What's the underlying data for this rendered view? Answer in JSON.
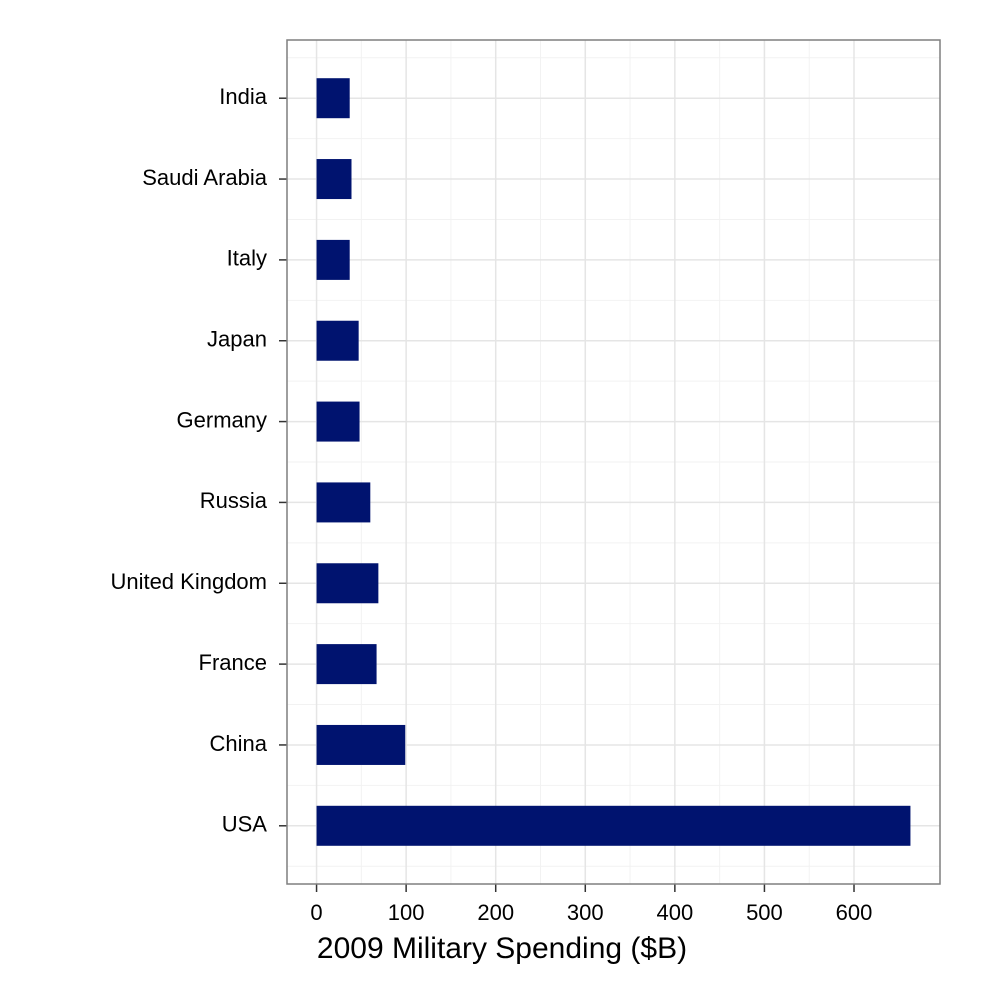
{
  "chart_data": {
    "type": "hbar",
    "xlabel": "2009 Military Spending ($B)",
    "categories": [
      "India",
      "Saudi Arabia",
      "Italy",
      "Japan",
      "Germany",
      "Russia",
      "United Kingdom",
      "France",
      "China",
      "USA"
    ],
    "values": [
      37,
      39,
      37,
      47,
      48,
      60,
      69,
      67,
      99,
      663
    ],
    "color": "#00136f",
    "xlim": [
      -33,
      696
    ],
    "xticks": [
      0,
      100,
      200,
      300,
      400,
      500,
      600
    ],
    "grid": true
  }
}
